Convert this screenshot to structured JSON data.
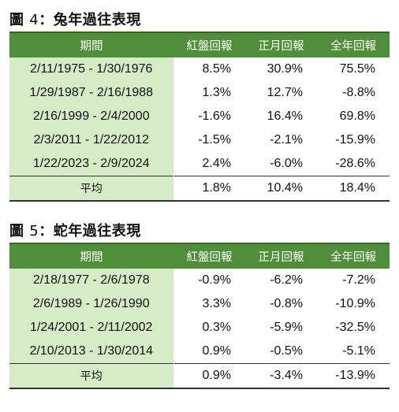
{
  "fig4": {
    "label": "圖",
    "number": "4",
    "sep": "：",
    "title": "兔年過往表現",
    "headers": [
      "期間",
      "紅盤回報",
      "正月回報",
      "全年回報"
    ],
    "rows": [
      {
        "period": "2/11/1975 - 1/30/1976",
        "red": "8.5%",
        "month": "30.9%",
        "year": "75.5%"
      },
      {
        "period": "1/29/1987 - 2/16/1988",
        "red": "1.3%",
        "month": "12.7%",
        "year": "-8.8%"
      },
      {
        "period": "2/16/1999 - 2/4/2000",
        "red": "-1.6%",
        "month": "16.4%",
        "year": "69.8%"
      },
      {
        "period": "2/3/2011 - 1/22/2012",
        "red": "-1.5%",
        "month": "-2.1%",
        "year": "-15.9%"
      },
      {
        "period": "1/22/2023 - 2/9/2024",
        "red": "2.4%",
        "month": "-6.0%",
        "year": "-28.6%"
      }
    ],
    "average": {
      "period": "平均",
      "red": "1.8%",
      "month": "10.4%",
      "year": "18.4%"
    }
  },
  "fig5": {
    "label": "圖",
    "number": "5",
    "sep": "：",
    "title": "蛇年過往表現",
    "headers": [
      "期間",
      "紅盤回報",
      "正月回報",
      "全年回報"
    ],
    "rows": [
      {
        "period": "2/18/1977 - 2/6/1978",
        "red": "-0.9%",
        "month": "-6.2%",
        "year": "-7.2%"
      },
      {
        "period": "2/6/1989 - 1/26/1990",
        "red": "3.3%",
        "month": "-0.8%",
        "year": "-10.9%"
      },
      {
        "period": "1/24/2001 - 2/11/2002",
        "red": "0.3%",
        "month": "-5.9%",
        "year": "-32.5%"
      },
      {
        "period": "2/10/2013 - 1/30/2014",
        "red": "0.9%",
        "month": "-0.5%",
        "year": "-5.1%"
      }
    ],
    "average": {
      "period": "平均",
      "red": "0.9%",
      "month": "-3.4%",
      "year": "-13.9%"
    }
  },
  "colors": {
    "header_bg": "#4f8f39",
    "period_bg": "#d6ecc7"
  }
}
